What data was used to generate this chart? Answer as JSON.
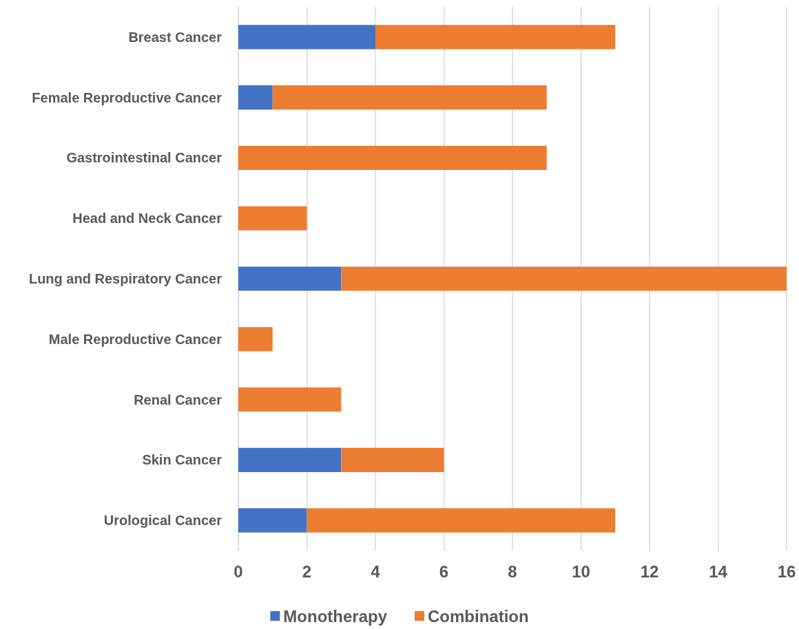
{
  "chart_data": {
    "type": "bar",
    "orientation": "horizontal",
    "stacked": true,
    "categories": [
      "Breast Cancer",
      "Female Reproductive Cancer",
      "Gastrointestinal Cancer",
      "Head and Neck Cancer",
      "Lung and Respiratory Cancer",
      "Male Reproductive Cancer",
      "Renal Cancer",
      "Skin Cancer",
      "Urological Cancer"
    ],
    "series": [
      {
        "name": "Monotherapy",
        "color": "#4472c4",
        "values": [
          4,
          1,
          0,
          0,
          3,
          0,
          0,
          3,
          2
        ]
      },
      {
        "name": "Combination",
        "color": "#ed7d31",
        "values": [
          7,
          8,
          9,
          2,
          13,
          1,
          3,
          3,
          9
        ]
      }
    ],
    "xlim": [
      0,
      16
    ],
    "xticks": [
      0,
      2,
      4,
      6,
      8,
      10,
      12,
      14,
      16
    ],
    "grid": "x",
    "legend": "bottom"
  }
}
